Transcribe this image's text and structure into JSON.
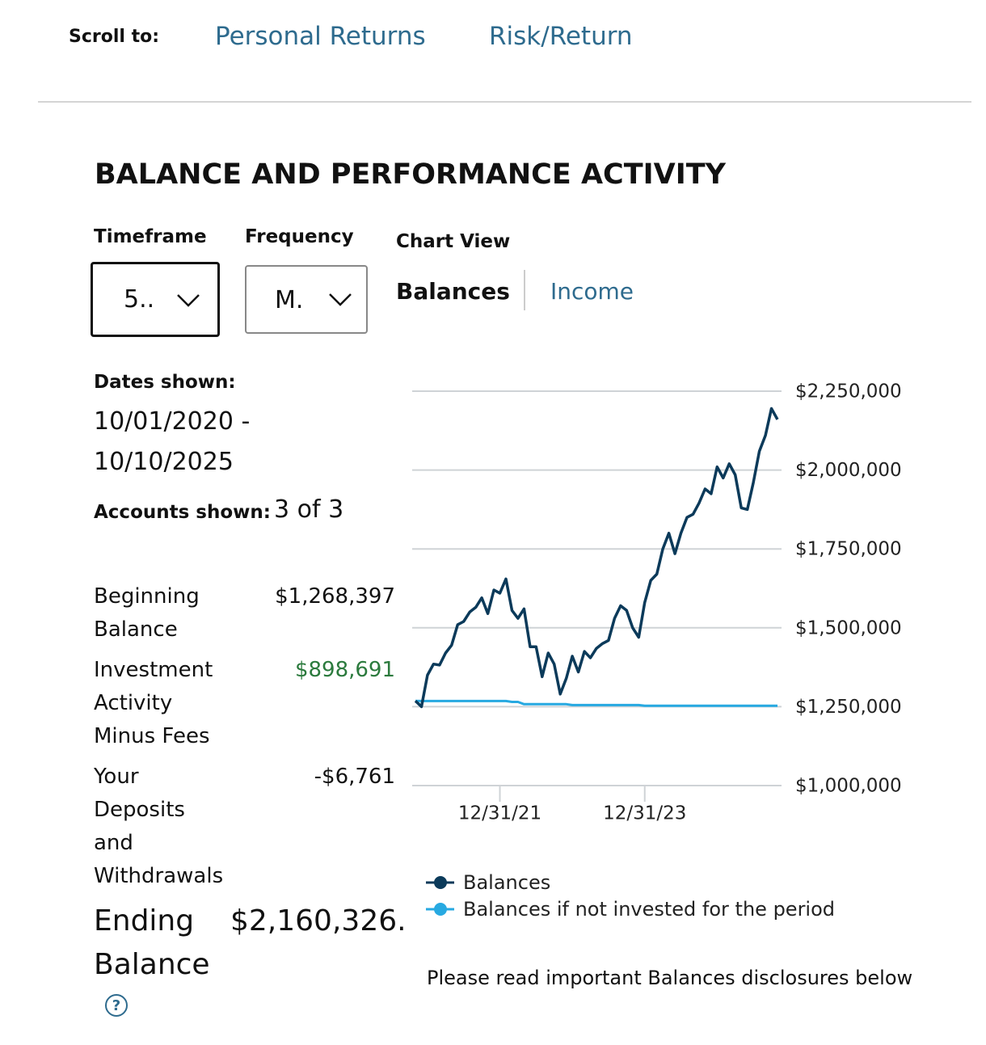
{
  "nav": {
    "label": "Scroll to:",
    "links": [
      "Personal Returns",
      "Risk/Return"
    ]
  },
  "header": {
    "title": "BALANCE AND PERFORMANCE ACTIVITY"
  },
  "controls": {
    "timeframe": {
      "label": "Timeframe",
      "value": "5.."
    },
    "frequency": {
      "label": "Frequency",
      "value": "M."
    },
    "chart_view": {
      "label": "Chart View",
      "options": [
        "Balances",
        "Income"
      ]
    }
  },
  "summary": {
    "dates_label": "Dates shown:",
    "dates": [
      "10/01/2020 -",
      "10/10/2025"
    ],
    "accounts_label": "Accounts shown:",
    "accounts": "3 of 3",
    "rows": [
      {
        "label": [
          "Beginning",
          "Balance"
        ],
        "value": "$1,268,397"
      },
      {
        "label": [
          "Investment",
          "Activity",
          "Minus Fees"
        ],
        "value": "$898,691"
      },
      {
        "label": [
          "Your",
          "Deposits",
          "and",
          "Withdrawals"
        ],
        "value": "-$6,761"
      }
    ],
    "ending_label": [
      "Ending",
      "Balance"
    ],
    "ending_value": "$2,160,326."
  },
  "disclosure": "Please read important Balances disclosures below",
  "chart_data": {
    "type": "line",
    "categories": [
      null,
      null,
      null,
      null,
      null,
      null,
      null,
      null,
      null,
      null,
      null,
      null,
      null,
      null,
      "12/31/21",
      null,
      null,
      null,
      null,
      null,
      null,
      null,
      null,
      null,
      null,
      null,
      null,
      null,
      null,
      null,
      null,
      null,
      null,
      null,
      null,
      null,
      null,
      null,
      "12/31/23",
      null,
      null,
      null,
      null,
      null,
      null,
      null,
      null,
      null,
      null,
      null,
      null,
      null,
      null,
      null,
      null,
      null,
      null,
      null,
      null,
      null,
      null
    ],
    "series": [
      {
        "name": "Balances",
        "color": "#0b3a5a",
        "values": [
          1268397,
          1250000,
          1350000,
          1385000,
          1382000,
          1420000,
          1445000,
          1510000,
          1520000,
          1550000,
          1565000,
          1595000,
          1545000,
          1620000,
          1610000,
          1655000,
          1555000,
          1530000,
          1560000,
          1440000,
          1440000,
          1345000,
          1420000,
          1385000,
          1290000,
          1340000,
          1410000,
          1360000,
          1425000,
          1405000,
          1435000,
          1450000,
          1460000,
          1530000,
          1570000,
          1555000,
          1500000,
          1470000,
          1580000,
          1650000,
          1670000,
          1750000,
          1800000,
          1735000,
          1800000,
          1850000,
          1860000,
          1895000,
          1940000,
          1925000,
          2010000,
          1975000,
          2020000,
          1985000,
          1880000,
          1875000,
          1960000,
          2060000,
          2110000,
          2195000,
          2160326
        ]
      },
      {
        "name": "Balances if not invested for the period",
        "color": "#27a9e1",
        "values": [
          1268397,
          1268000,
          1268000,
          1268000,
          1268000,
          1268000,
          1268000,
          1268000,
          1268000,
          1268000,
          1268000,
          1268000,
          1268000,
          1268000,
          1268000,
          1268000,
          1265000,
          1265000,
          1258000,
          1258000,
          1258000,
          1258000,
          1258000,
          1258000,
          1258000,
          1258000,
          1255000,
          1255000,
          1255000,
          1255000,
          1255000,
          1255000,
          1255000,
          1255000,
          1255000,
          1255000,
          1255000,
          1255000,
          1253000,
          1253000,
          1253000,
          1253000,
          1253000,
          1253000,
          1253000,
          1253000,
          1253000,
          1253000,
          1253000,
          1253000,
          1253000,
          1253000,
          1253000,
          1253000,
          1253000,
          1253000,
          1253000,
          1253000,
          1253000,
          1253000,
          1253000
        ]
      }
    ],
    "ylim": [
      1000000,
      2250000
    ],
    "yticks": [
      {
        "value": 1000000,
        "label": "$1,000,000"
      },
      {
        "value": 1250000,
        "label": "$1,250,000"
      },
      {
        "value": 1500000,
        "label": "$1,500,000"
      },
      {
        "value": 1750000,
        "label": "$1,750,000"
      },
      {
        "value": 2000000,
        "label": "$2,000,000"
      },
      {
        "value": 2250000,
        "label": "$2,250,000"
      }
    ],
    "grid": true
  }
}
